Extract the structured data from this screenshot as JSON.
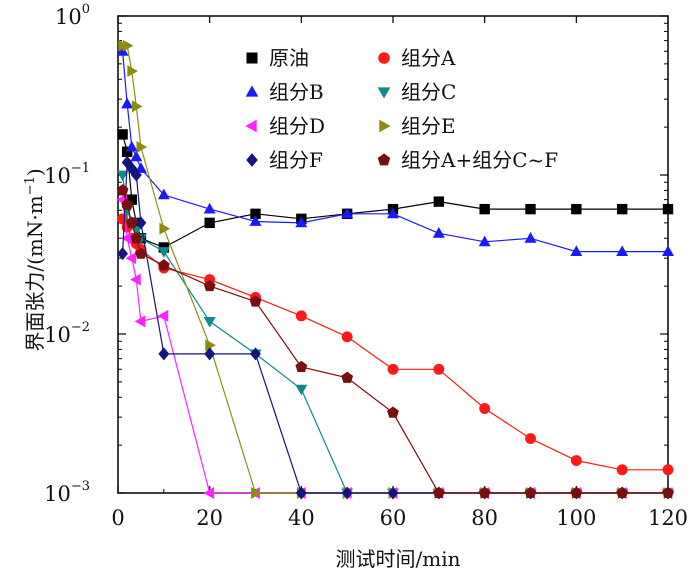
{
  "chart_data": {
    "type": "line",
    "xlabel": "测试时间/min",
    "ylabel": "界面张力/(mN·m",
    "ylabel_exp": "−1",
    "ylabel_tail": ")",
    "yscale": "log",
    "xlim": [
      0,
      120
    ],
    "ylim": [
      0.001,
      1
    ],
    "x_ticks": [
      0,
      20,
      40,
      60,
      80,
      100,
      120
    ],
    "y_ticks": [
      {
        "value": 0.001,
        "base": "10",
        "exp": "−3"
      },
      {
        "value": 0.01,
        "base": "10",
        "exp": "−2"
      },
      {
        "value": 0.1,
        "base": "10",
        "exp": "−1"
      },
      {
        "value": 1,
        "base": "10",
        "exp": "0"
      }
    ],
    "legend_position": "top-right",
    "series": [
      {
        "name": "原油",
        "color": "#000000",
        "marker": "square",
        "x": [
          1,
          2,
          3,
          4,
          5,
          10,
          20,
          30,
          40,
          50,
          60,
          70,
          80,
          90,
          100,
          110,
          120
        ],
        "y": [
          0.18,
          0.14,
          0.07,
          0.05,
          0.04,
          0.035,
          0.05,
          0.057,
          0.053,
          0.057,
          0.061,
          0.068,
          0.061,
          0.061,
          0.061,
          0.061,
          0.061
        ]
      },
      {
        "name": "组分A",
        "color": "#ff1a1a",
        "marker": "circle",
        "x": [
          1,
          2,
          3,
          4,
          5,
          10,
          20,
          30,
          40,
          50,
          60,
          70,
          80,
          90,
          100,
          110,
          120
        ],
        "y": [
          0.053,
          0.047,
          0.04,
          0.037,
          0.034,
          0.026,
          0.022,
          0.017,
          0.013,
          0.0096,
          0.006,
          0.006,
          0.0034,
          0.0022,
          0.0016,
          0.0014,
          0.0014
        ]
      },
      {
        "name": "组分B",
        "color": "#1a1aff",
        "marker": "triangle-up",
        "x": [
          1,
          2,
          3,
          4,
          5,
          10,
          20,
          30,
          40,
          50,
          60,
          70,
          80,
          90,
          100,
          110,
          120
        ],
        "y": [
          0.6,
          0.28,
          0.15,
          0.13,
          0.11,
          0.075,
          0.061,
          0.051,
          0.05,
          0.057,
          0.057,
          0.043,
          0.038,
          0.04,
          0.033,
          0.033,
          0.033
        ]
      },
      {
        "name": "组分C",
        "color": "#0e8a8a",
        "marker": "triangle-down",
        "x": [
          1,
          2,
          3,
          4,
          5,
          10,
          20,
          30,
          40,
          50,
          60,
          70,
          80,
          90,
          100,
          110,
          120
        ],
        "y": [
          0.1,
          0.06,
          0.05,
          0.045,
          0.04,
          0.033,
          0.012,
          0.0075,
          0.0045,
          0.001,
          0.001,
          0.001,
          0.001,
          0.001,
          0.001,
          0.001,
          0.001
        ]
      },
      {
        "name": "组分D",
        "color": "#ff22ff",
        "marker": "triangle-left",
        "x": [
          1,
          2,
          3,
          4,
          5,
          10,
          20,
          30,
          40,
          50,
          60,
          70,
          80,
          90,
          100,
          110,
          120
        ],
        "y": [
          0.07,
          0.04,
          0.03,
          0.022,
          0.012,
          0.013,
          0.001,
          0.001,
          0.001,
          0.001,
          0.001,
          0.001,
          0.001,
          0.001,
          0.001,
          0.001,
          0.001
        ]
      },
      {
        "name": "组分E",
        "color": "#8c8c14",
        "marker": "triangle-right",
        "x": [
          1,
          2,
          3,
          4,
          5,
          10,
          20,
          30,
          40,
          50,
          60,
          70,
          80,
          90,
          100,
          110,
          120
        ],
        "y": [
          0.65,
          0.65,
          0.45,
          0.27,
          0.15,
          0.046,
          0.0085,
          0.001,
          0.001,
          0.001,
          0.001,
          0.001,
          0.001,
          0.001,
          0.001,
          0.001,
          0.001
        ]
      },
      {
        "name": "组分F",
        "color": "#141480",
        "marker": "diamond",
        "x": [
          1,
          2,
          3,
          4,
          5,
          10,
          20,
          30,
          40,
          50,
          60,
          70,
          80,
          90,
          100,
          110,
          120
        ],
        "y": [
          0.032,
          0.12,
          0.11,
          0.1,
          0.05,
          0.0075,
          0.0075,
          0.0075,
          0.001,
          0.001,
          0.001,
          0.001,
          0.001,
          0.001,
          0.001,
          0.001,
          0.001
        ]
      },
      {
        "name": "组分A+组分C~F",
        "color": "#7a0f0f",
        "marker": "pentagon",
        "x": [
          1,
          2,
          3,
          4,
          5,
          10,
          20,
          30,
          40,
          50,
          60,
          70,
          80,
          90,
          100,
          110,
          120
        ],
        "y": [
          0.08,
          0.065,
          0.05,
          0.04,
          0.032,
          0.027,
          0.02,
          0.016,
          0.0062,
          0.0053,
          0.0032,
          0.001,
          0.001,
          0.001,
          0.001,
          0.001,
          0.001
        ]
      }
    ]
  }
}
